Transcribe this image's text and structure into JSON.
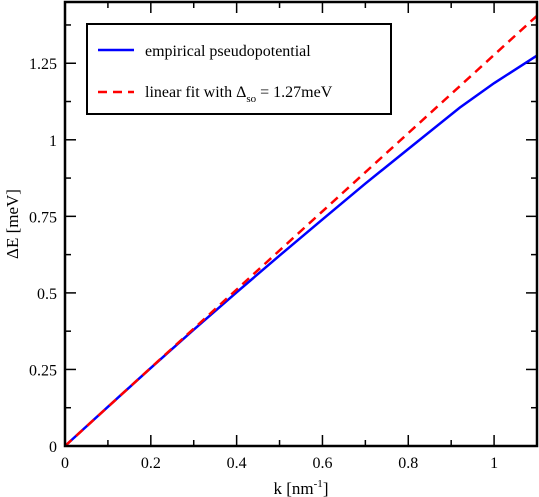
{
  "chart_data": {
    "type": "line",
    "xlabel": {
      "main": "k [nm",
      "sup": "-1",
      "end": "]"
    },
    "ylabel": "ΔE [meV]",
    "xlim": [
      0,
      1.1
    ],
    "ylim": [
      0,
      1.45
    ],
    "x_ticks": [
      0,
      0.2,
      0.4,
      0.6,
      0.8,
      1.0
    ],
    "x_tick_labels": [
      "0",
      "0.2",
      "0.4",
      "0.6",
      "0.8",
      "1"
    ],
    "y_ticks": [
      0,
      0.25,
      0.5,
      0.75,
      1.0,
      1.25
    ],
    "y_tick_labels": [
      "0",
      "0.25",
      "0.5",
      "0.75",
      "1",
      "1.25"
    ],
    "grid": false,
    "legend_position": "top-left",
    "series": [
      {
        "name": "empirical pseudopotential",
        "color": "#0000ff",
        "dash": "solid",
        "x": [
          0,
          0.1,
          0.2,
          0.3,
          0.4,
          0.5,
          0.6,
          0.7,
          0.8,
          0.92,
          1.0,
          1.1
        ],
        "y": [
          0,
          0.128,
          0.255,
          0.38,
          0.502,
          0.622,
          0.74,
          0.857,
          0.97,
          1.105,
          1.185,
          1.275
        ]
      },
      {
        "name_parts": {
          "pre": "linear fit with Δ",
          "sub": "so",
          "post": " = 1.27meV"
        },
        "color": "#ff0000",
        "dash": "dashed",
        "x": [
          0,
          1.1
        ],
        "y": [
          0,
          1.405
        ]
      }
    ]
  }
}
